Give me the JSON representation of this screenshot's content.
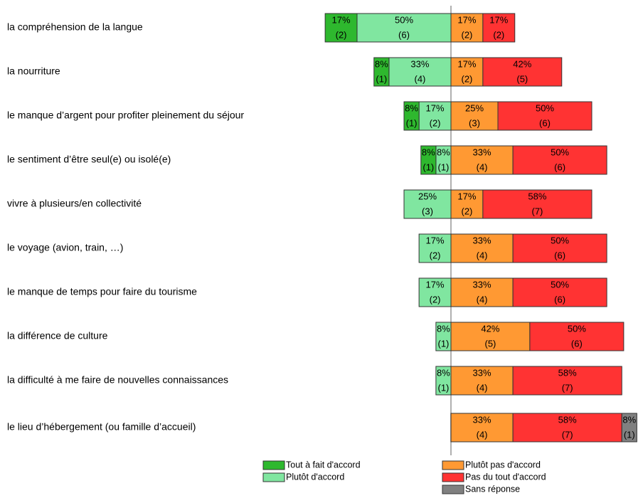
{
  "chart_data": {
    "type": "diverging-bar",
    "categories": [
      "la compréhension de la langue",
      "la nourriture",
      "le manque d’argent pour profiter pleinement du séjour",
      "le sentiment d’être seul(e) ou isolé(e)",
      "vivre à plusieurs/en collectivité",
      "le voyage (avion, train, …)",
      "le manque de temps pour faire du tourisme",
      "la différence de culture",
      "la difficulté à me faire de nouvelles connaissances",
      "le lieu d’hébergement (ou famille d’accueil)"
    ],
    "series": [
      {
        "name": "Tout à fait d'accord",
        "color": "#2eb82e",
        "values": [
          17,
          8,
          8,
          8,
          null,
          null,
          null,
          null,
          null,
          null
        ],
        "value_labels": [
          "17%",
          "8%",
          "8%",
          "8%",
          null,
          null,
          null,
          null,
          null,
          null
        ],
        "count_labels": [
          "(2)",
          "(1)",
          "(1)",
          "(1)",
          null,
          null,
          null,
          null,
          null,
          null
        ]
      },
      {
        "name": "Plutôt d'accord",
        "color": "#80e6a0",
        "values": [
          50,
          33,
          17,
          8,
          25,
          17,
          17,
          8,
          8,
          null
        ],
        "value_labels": [
          "50%",
          "33%",
          "17%",
          "8%",
          "25%",
          "17%",
          "17%",
          "8%",
          "8%",
          null
        ],
        "count_labels": [
          "(6)",
          "(4)",
          "(2)",
          "(1)",
          "(3)",
          "(2)",
          "(2)",
          "(1)",
          "(1)",
          null
        ]
      },
      {
        "name": "Plutôt pas d'accord",
        "color": "#ff9933",
        "values": [
          17,
          17,
          25,
          33,
          17,
          33,
          33,
          42,
          33,
          33
        ],
        "value_labels": [
          "17%",
          "17%",
          "25%",
          "33%",
          "17%",
          "33%",
          "33%",
          "42%",
          "33%",
          "33%"
        ],
        "count_labels": [
          "(2)",
          "(2)",
          "(3)",
          "(4)",
          "(2)",
          "(4)",
          "(4)",
          "(5)",
          "(4)",
          "(4)"
        ]
      },
      {
        "name": "Pas du tout d'accord",
        "color": "#ff3333",
        "values": [
          17,
          42,
          50,
          50,
          58,
          50,
          50,
          50,
          58,
          58
        ],
        "value_labels": [
          "17%",
          "42%",
          "50%",
          "50%",
          "58%",
          "50%",
          "50%",
          "50%",
          "58%",
          "58%"
        ],
        "count_labels": [
          "(2)",
          "(5)",
          "(6)",
          "(6)",
          "(7)",
          "(6)",
          "(6)",
          "(6)",
          "(7)",
          "(7)"
        ]
      },
      {
        "name": "Sans réponse",
        "color": "#808080",
        "values": [
          null,
          null,
          null,
          null,
          null,
          null,
          null,
          null,
          null,
          8
        ],
        "value_labels": [
          null,
          null,
          null,
          null,
          null,
          null,
          null,
          null,
          null,
          "8%"
        ],
        "count_labels": [
          null,
          null,
          null,
          null,
          null,
          null,
          null,
          null,
          null,
          "(1)"
        ]
      }
    ]
  }
}
